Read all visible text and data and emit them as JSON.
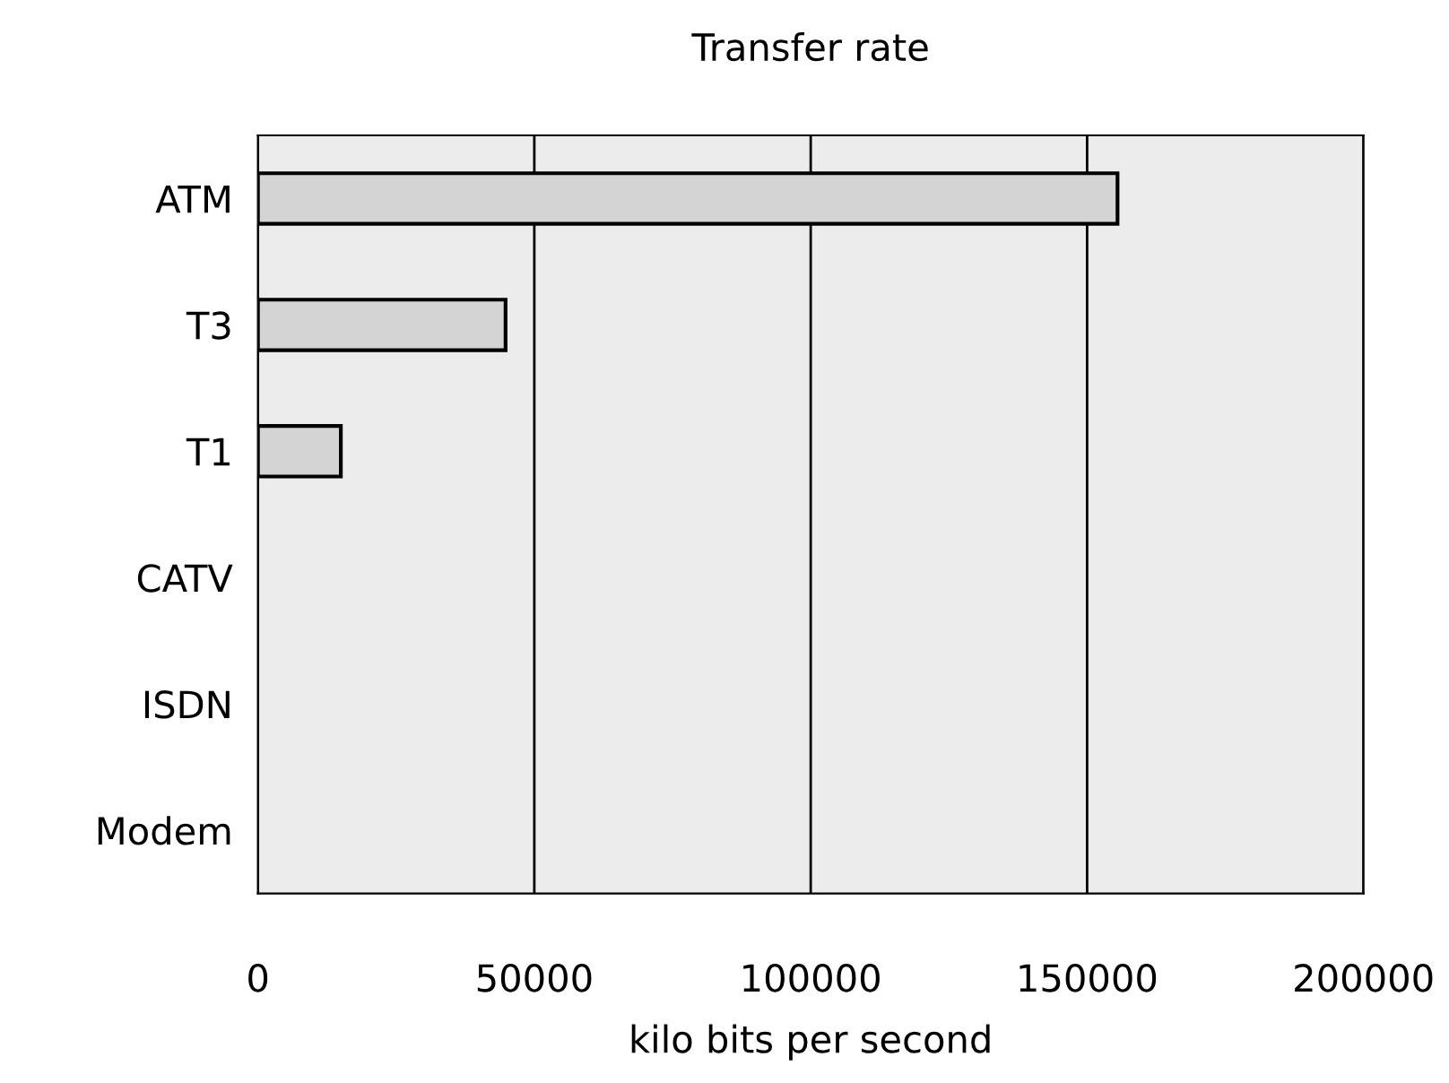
{
  "chart_data": {
    "type": "bar",
    "orientation": "horizontal",
    "title": "Transfer rate",
    "xlabel": "kilo bits per second",
    "categories": [
      "ATM",
      "T3",
      "T1",
      "CATV",
      "ISDN",
      "Modem"
    ],
    "values": [
      155500,
      44800,
      15000,
      null,
      null,
      null
    ],
    "color": "#d4d4d4",
    "xlim": [
      0,
      200000
    ],
    "xticks": [
      0,
      50000,
      100000,
      150000,
      200000
    ],
    "grid": "x"
  }
}
